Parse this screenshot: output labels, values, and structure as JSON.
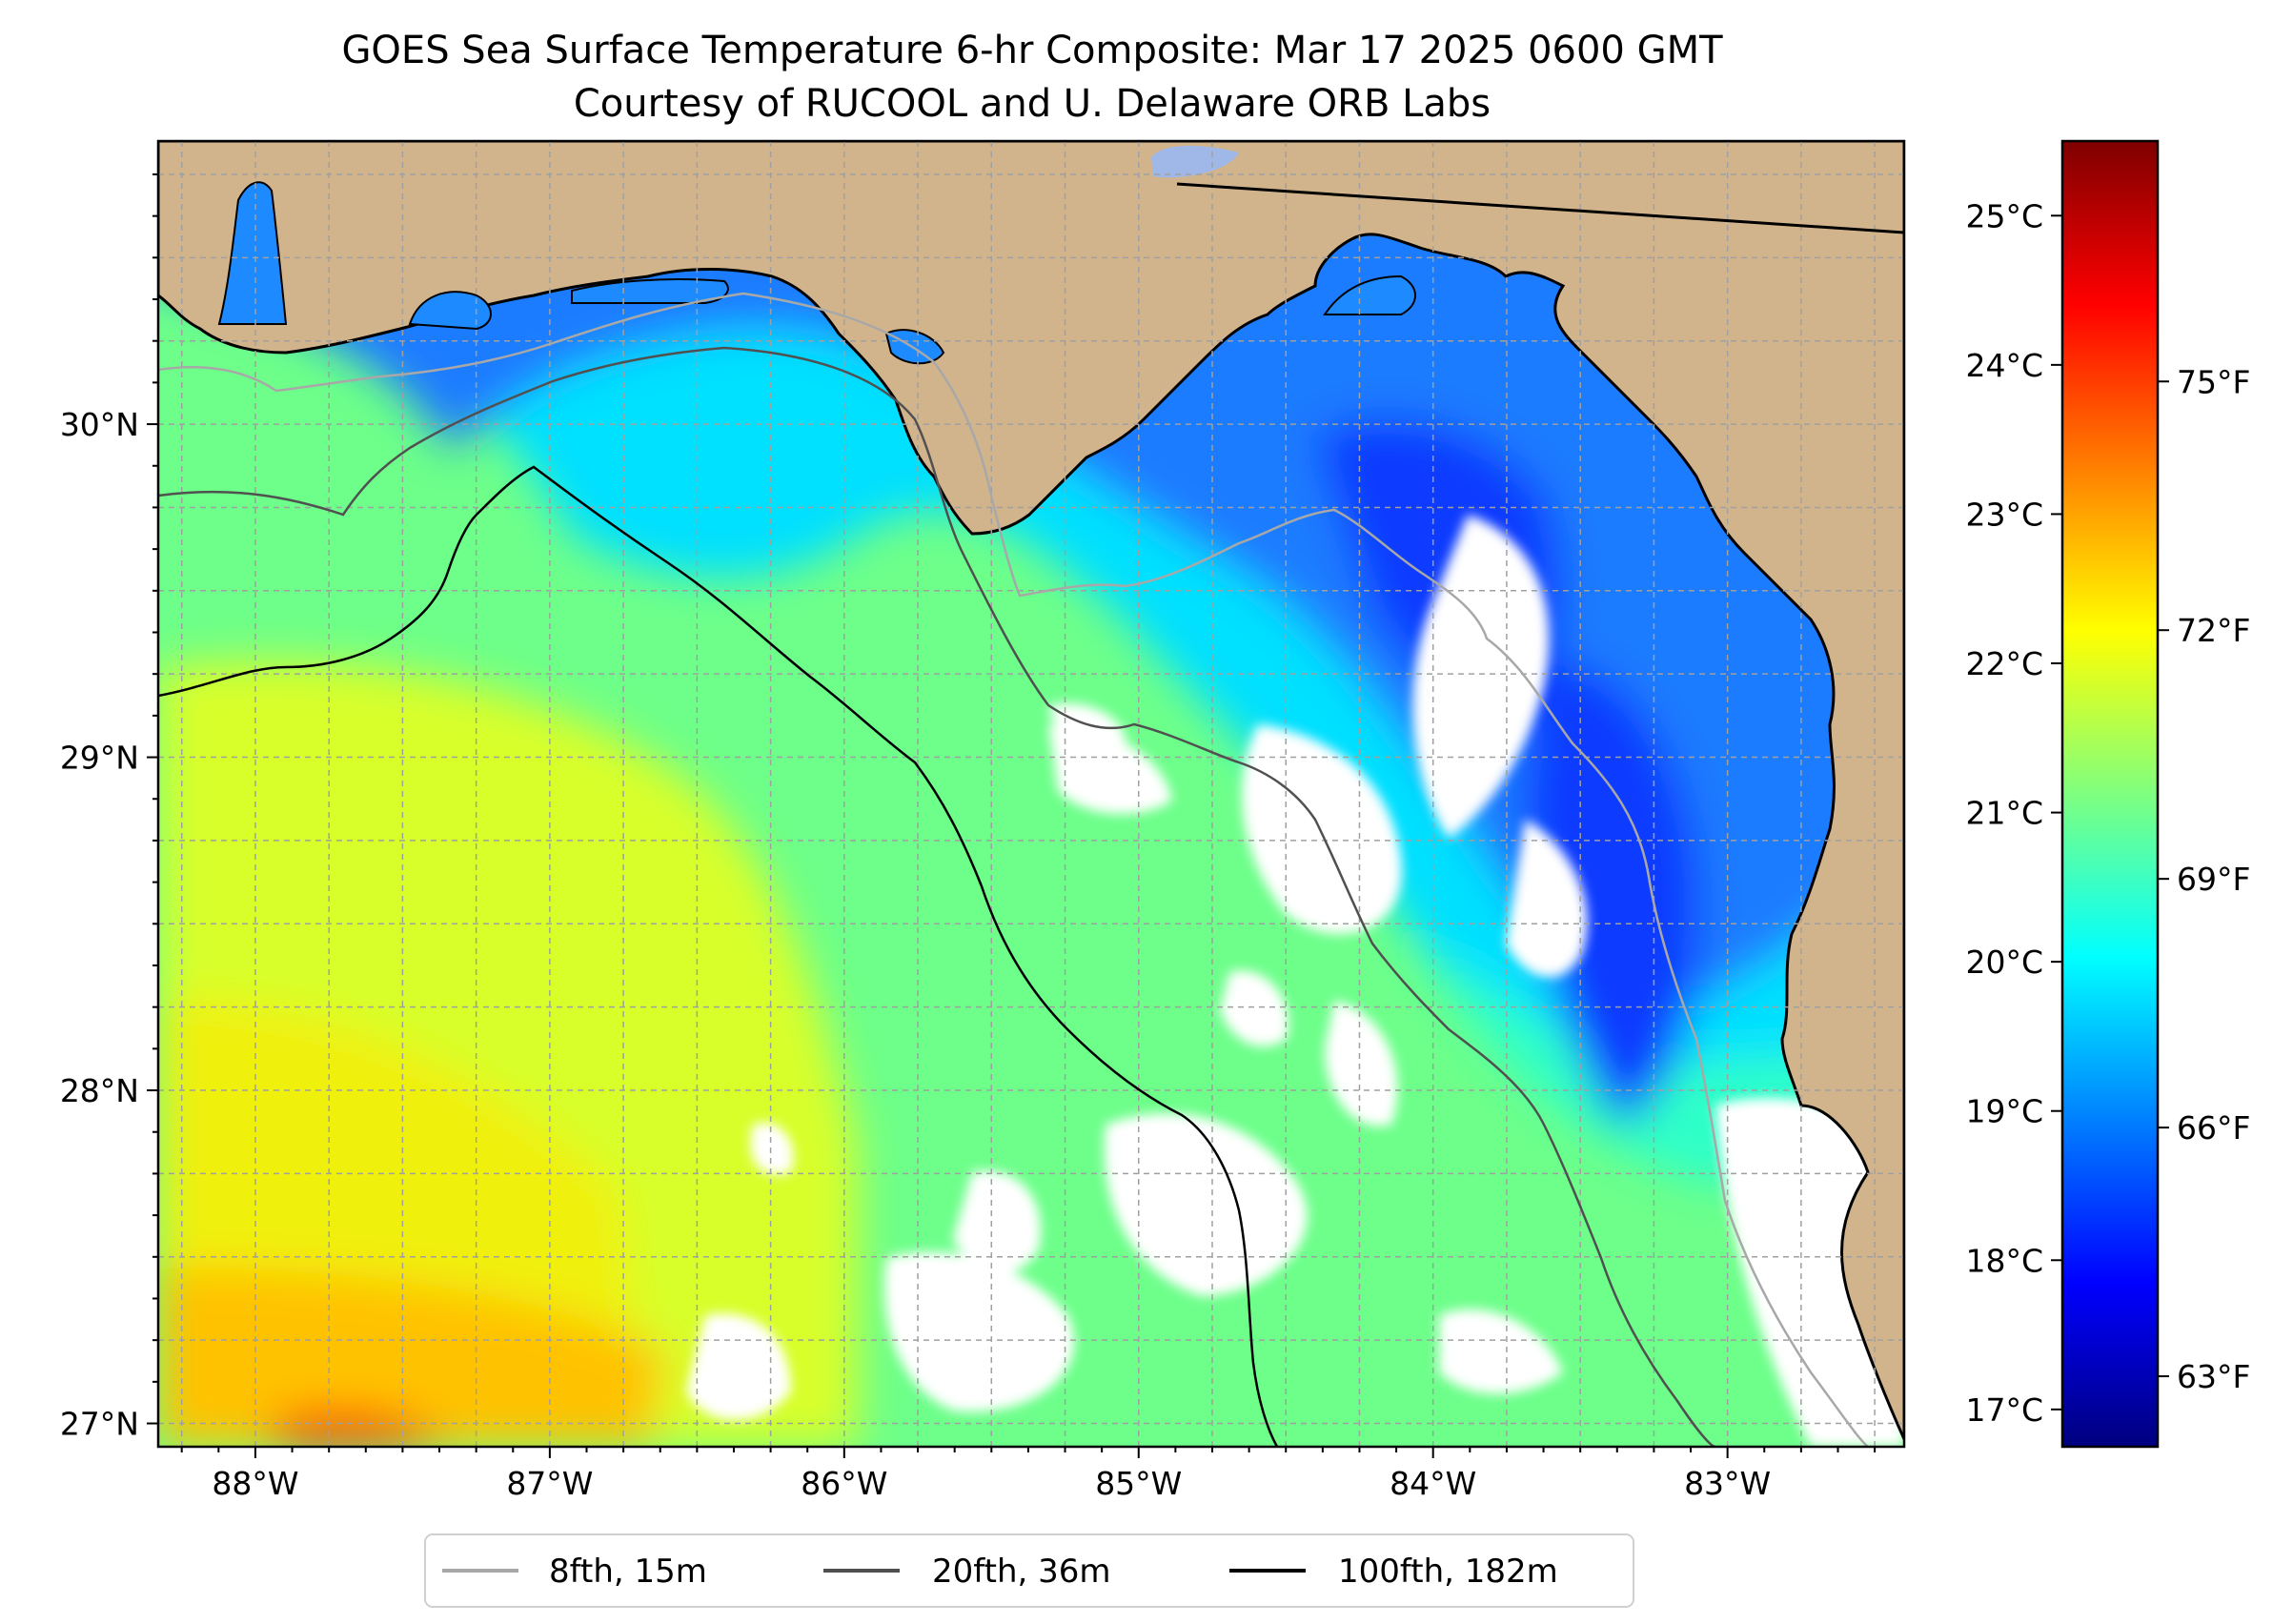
{
  "title": {
    "line1": "GOES Sea Surface Temperature 6-hr Composite: Mar 17 2025 0600 GMT",
    "line2": "Courtesy of RUCOOL and U. Delaware ORB Labs"
  },
  "map": {
    "lon_range": [
      -88.33,
      -82.4
    ],
    "lat_range": [
      26.93,
      30.85
    ],
    "lat_ticks": [
      {
        "value": 27,
        "label": "27°N"
      },
      {
        "value": 28,
        "label": "28°N"
      },
      {
        "value": 29,
        "label": "29°N"
      },
      {
        "value": 30,
        "label": "30°N"
      }
    ],
    "lon_ticks": [
      {
        "value": -88,
        "label": "88°W"
      },
      {
        "value": -87,
        "label": "87°W"
      },
      {
        "value": -86,
        "label": "86°W"
      },
      {
        "value": -85,
        "label": "85°W"
      },
      {
        "value": -84,
        "label": "84°W"
      },
      {
        "value": -83,
        "label": "83°W"
      }
    ],
    "colors": {
      "land": "#d2b48c",
      "clouds": "#ffffff",
      "gridlines": "#a0a0a0",
      "isobath_8fth": "#a8a8a8",
      "isobath_20fth": "#505050",
      "isobath_100fth": "#000000"
    }
  },
  "colorbar": {
    "celsius_range": [
      16.75,
      25.5
    ],
    "celsius_ticks": [
      {
        "value": 17,
        "label": "17°C"
      },
      {
        "value": 18,
        "label": "18°C"
      },
      {
        "value": 19,
        "label": "19°C"
      },
      {
        "value": 20,
        "label": "20°C"
      },
      {
        "value": 21,
        "label": "21°C"
      },
      {
        "value": 22,
        "label": "22°C"
      },
      {
        "value": 23,
        "label": "23°C"
      },
      {
        "value": 24,
        "label": "24°C"
      },
      {
        "value": 25,
        "label": "25°C"
      }
    ],
    "fahrenheit_ticks": [
      {
        "value": 63,
        "label": "63°F"
      },
      {
        "value": 66,
        "label": "66°F"
      },
      {
        "value": 69,
        "label": "69°F"
      },
      {
        "value": 72,
        "label": "72°F"
      },
      {
        "value": 75,
        "label": "75°F"
      }
    ],
    "colormap": [
      "#00007f",
      "#0000ff",
      "#007fff",
      "#00ffff",
      "#7fff7f",
      "#ffff00",
      "#ff7f00",
      "#ff0000",
      "#7f0000"
    ]
  },
  "legend": {
    "items": [
      {
        "label": "8fth, 15m",
        "color": "#a8a8a8"
      },
      {
        "label": "20fth, 36m",
        "color": "#505050"
      },
      {
        "label": "100fth, 182m",
        "color": "#000000"
      }
    ]
  }
}
